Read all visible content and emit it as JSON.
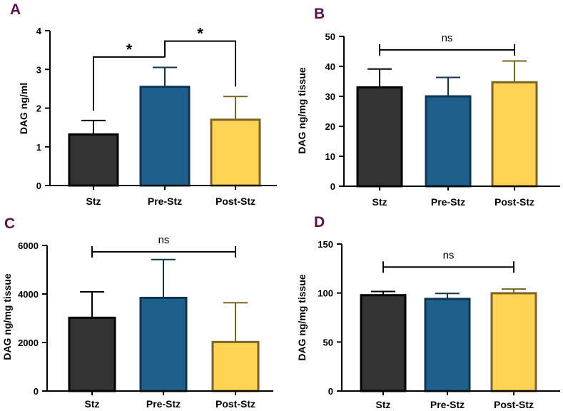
{
  "colors": {
    "fills": [
      "#333333",
      "#1f5f8b",
      "#ffd454"
    ],
    "strokes": [
      "#000000",
      "#0e3553",
      "#7b6325"
    ],
    "letter": "#5a1050"
  },
  "chart_data": [
    {
      "panel": "A",
      "type": "bar",
      "categories": [
        "Stz",
        "Pre-Stz",
        "Post-Stz"
      ],
      "values": [
        1.32,
        2.55,
        1.7
      ],
      "errors": [
        0.36,
        0.5,
        0.6
      ],
      "ylabel": "DAG ng/ml",
      "ylim": [
        0,
        4
      ],
      "yticks": [
        0,
        1,
        2,
        3,
        4
      ],
      "ytick_labels": [
        "0",
        "1",
        "2",
        "3",
        "4"
      ],
      "comparisons": [
        {
          "from": 0,
          "to": 1,
          "label": "*",
          "level": 3.32
        },
        {
          "from": 1,
          "to": 2,
          "label": "*",
          "level": 3.73
        }
      ]
    },
    {
      "panel": "B",
      "type": "bar",
      "categories": [
        "Stz",
        "Pre-Stz",
        "Post-Stz"
      ],
      "values": [
        33.0,
        30.0,
        34.7
      ],
      "errors": [
        6.1,
        6.3,
        7.1
      ],
      "ylabel": "DAG ng/mg tissue",
      "ylim": [
        0,
        50
      ],
      "yticks": [
        0,
        10,
        20,
        30,
        40,
        50
      ],
      "ytick_labels": [
        "0",
        "10",
        "20",
        "30",
        "40",
        "50"
      ],
      "comparisons": [
        {
          "from": 0,
          "to": 2,
          "label": "ns",
          "level": 45.5
        }
      ]
    },
    {
      "panel": "C",
      "type": "bar",
      "categories": [
        "Stz",
        "Pre-Stz",
        "Post-Stz"
      ],
      "values": [
        3020,
        3840,
        2020
      ],
      "errors": [
        1070,
        1580,
        1620
      ],
      "ylabel": "DAG ng/mg tissue",
      "ylim": [
        0,
        6000
      ],
      "yticks": [
        0,
        2000,
        4000,
        6000
      ],
      "ytick_labels": [
        "0",
        "2000",
        "4000",
        "6000"
      ],
      "comparisons": [
        {
          "from": 0,
          "to": 2,
          "label": "ns",
          "level": 5740
        }
      ]
    },
    {
      "panel": "D",
      "type": "bar",
      "categories": [
        "Stz",
        "Pre-Stz",
        "Post-Stz"
      ],
      "values": [
        97.8,
        94.0,
        99.8
      ],
      "errors": [
        3.8,
        5.6,
        4.2
      ],
      "ylabel": "DAG ng/mg tissue",
      "ylim": [
        0,
        150
      ],
      "yticks": [
        0,
        50,
        100,
        150
      ],
      "ytick_labels": [
        "0",
        "50",
        "100",
        "150"
      ],
      "comparisons": [
        {
          "from": 0,
          "to": 2,
          "label": "ns",
          "level": 126.5
        }
      ]
    }
  ]
}
